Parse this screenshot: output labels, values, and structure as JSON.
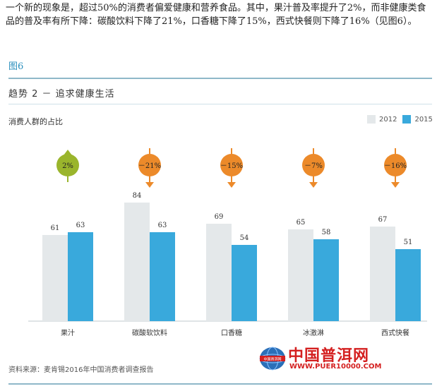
{
  "intro_text": "一个新的现象是，超过50%的消费者偏爱健康和营养食品。其中，果汁普及率提升了2%，而非健康类食品的普及率有所下降：碳酸饮料下降了21%，口香糖下降了15%，西式快餐则下降了16%（见图6）。",
  "figure_label": "图6",
  "trend_title": "趋势 2 － 追求健康生活",
  "source": "资料来源：麦肯锡2016年中国消费者调查报告",
  "watermark": {
    "globe_text": "中国普洱网",
    "name": "中国普洱网",
    "url": "WWW.PUER10000.COM"
  },
  "colors": {
    "s2012": "#e4e8ea",
    "s2015": "#39a9dc",
    "up": "#9ab52c",
    "down": "#ec8a2a",
    "rule": "#8fb8c9"
  },
  "chart_data": {
    "type": "bar",
    "title": "消费人群的占比",
    "categories": [
      "果汁",
      "碳酸软饮料",
      "口香糖",
      "冰激淋",
      "西式快餐"
    ],
    "series": [
      {
        "name": "2012",
        "values": [
          61,
          84,
          69,
          65,
          67
        ]
      },
      {
        "name": "2015",
        "values": [
          63,
          63,
          54,
          58,
          51
        ]
      }
    ],
    "changes": [
      {
        "label": "2%",
        "direction": "up"
      },
      {
        "label": "－21%",
        "direction": "down"
      },
      {
        "label": "－15%",
        "direction": "down"
      },
      {
        "label": "－7%",
        "direction": "down"
      },
      {
        "label": "－16%",
        "direction": "down"
      }
    ],
    "legend_position": "top-right",
    "ylim": [
      0,
      90
    ],
    "grid": false
  }
}
